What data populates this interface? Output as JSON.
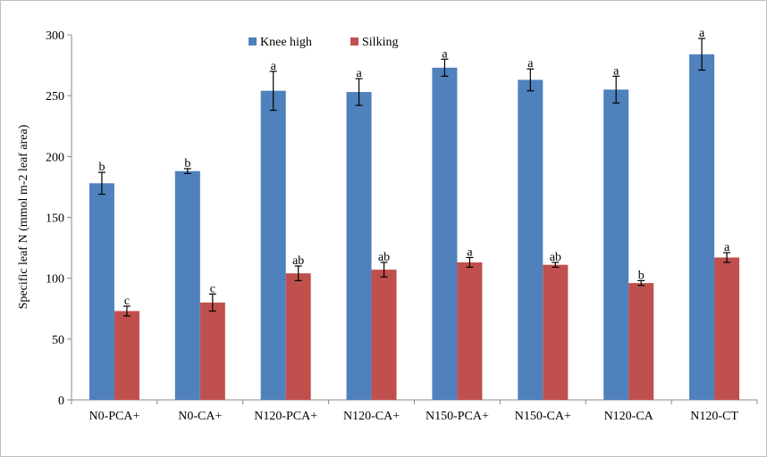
{
  "chart_data": {
    "type": "bar",
    "title": "",
    "xlabel": "",
    "ylabel": "Specific leaf N (mmol m-2 leaf area)",
    "ylim": [
      0,
      300
    ],
    "yticks": [
      0,
      50,
      100,
      150,
      200,
      250,
      300
    ],
    "grid": false,
    "legend_position": "top-center",
    "categories": [
      "N0-PCA+",
      "N0-CA+",
      "N120-PCA+",
      "N120-CA+",
      "N150-PCA+",
      "N150-CA+",
      "N120-CA",
      "N120-CT"
    ],
    "series": [
      {
        "name": "Knee high",
        "color": "#4f81bd",
        "values": [
          178,
          188,
          254,
          253,
          273,
          263,
          255,
          284
        ],
        "errors": [
          9,
          2,
          16,
          11,
          7,
          9,
          11,
          13
        ],
        "labels": [
          "b",
          "b",
          "a",
          "a",
          "a",
          "a",
          "a",
          "a"
        ]
      },
      {
        "name": "Silking",
        "color": "#c0504d",
        "values": [
          73,
          80,
          104,
          107,
          113,
          111,
          96,
          117
        ],
        "errors": [
          4,
          7,
          6,
          6,
          4,
          2,
          2,
          4
        ],
        "labels": [
          "c",
          "c",
          "ab",
          "ab",
          "a",
          "ab",
          "b",
          "a"
        ]
      }
    ]
  }
}
